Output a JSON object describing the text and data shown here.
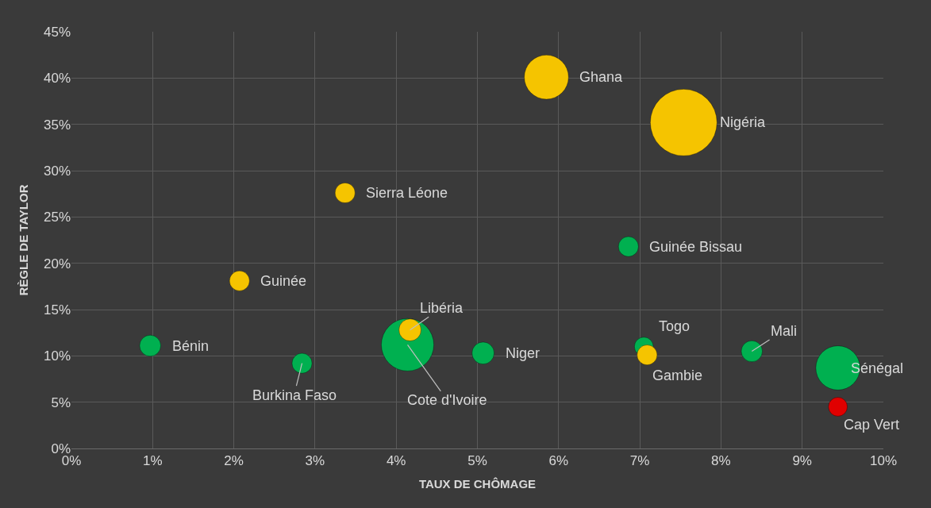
{
  "chart_data": {
    "type": "bubble",
    "xlabel": "TAUX DE CHÔMAGE",
    "ylabel": "RÈGLE DE TAYLOR",
    "x": [
      0.97,
      2.84,
      2.07,
      3.37,
      4.14,
      4.17,
      5.07,
      5.85,
      7.54,
      6.86,
      7.05,
      7.09,
      8.38,
      9.44,
      9.44
    ],
    "values": [
      11.1,
      9.2,
      18.1,
      27.6,
      11.2,
      12.8,
      10.3,
      40.1,
      35.2,
      21.8,
      11.0,
      10.1,
      10.5,
      8.7,
      4.5
    ],
    "sizes": [
      0.1,
      0.09,
      0.09,
      0.09,
      0.62,
      0.11,
      0.11,
      0.44,
      1,
      0.09,
      0.08,
      0.09,
      0.1,
      0.44,
      0.08
    ],
    "colors": [
      "#00b050",
      "#00b050",
      "#f5c400",
      "#f5c400",
      "#00b050",
      "#f5c400",
      "#00b050",
      "#f5c400",
      "#f5c400",
      "#00b050",
      "#00b050",
      "#f5c400",
      "#00b050",
      "#00b050",
      "#e00000"
    ],
    "annotations": [
      {
        "text": "Bénin",
        "x": 0.97,
        "y": 11.1
      },
      {
        "text": "Burkina Faso",
        "x": 2.84,
        "y": 9.2
      },
      {
        "text": "Guinée",
        "x": 2.07,
        "y": 18.1
      },
      {
        "text": "Sierra Léone",
        "x": 3.37,
        "y": 27.6
      },
      {
        "text": "Cote d'Ivoire",
        "x": 4.14,
        "y": 11.2
      },
      {
        "text": "Libéria",
        "x": 4.17,
        "y": 12.8
      },
      {
        "text": "Niger",
        "x": 5.07,
        "y": 10.3
      },
      {
        "text": "Ghana",
        "x": 5.85,
        "y": 40.1
      },
      {
        "text": "Nigéria",
        "x": 7.54,
        "y": 35.2
      },
      {
        "text": "Guinée Bissau",
        "x": 6.86,
        "y": 21.8
      },
      {
        "text": "Togo",
        "x": 7.05,
        "y": 11.0
      },
      {
        "text": "Gambie",
        "x": 7.09,
        "y": 10.1
      },
      {
        "text": "Mali",
        "x": 8.38,
        "y": 10.5
      },
      {
        "text": "Sénégal",
        "x": 9.44,
        "y": 8.7
      },
      {
        "text": "Cap Vert",
        "x": 9.44,
        "y": 4.5
      }
    ],
    "xlim": [
      0,
      10
    ],
    "ylim": [
      0,
      45
    ],
    "xticks": [
      {
        "value": 0,
        "label": "0%"
      },
      {
        "value": 1,
        "label": "1%"
      },
      {
        "value": 2,
        "label": "2%"
      },
      {
        "value": 3,
        "label": "3%"
      },
      {
        "value": 4,
        "label": "4%"
      },
      {
        "value": 5,
        "label": "5%"
      },
      {
        "value": 6,
        "label": "6%"
      },
      {
        "value": 7,
        "label": "7%"
      },
      {
        "value": 8,
        "label": "8%"
      },
      {
        "value": 9,
        "label": "9%"
      },
      {
        "value": 10,
        "label": "10%"
      }
    ],
    "yticks": [
      {
        "value": 0,
        "label": "0%"
      },
      {
        "value": 5,
        "label": "5%"
      },
      {
        "value": 10,
        "label": "10%"
      },
      {
        "value": 15,
        "label": "15%"
      },
      {
        "value": 20,
        "label": "20%"
      },
      {
        "value": 25,
        "label": "25%"
      },
      {
        "value": 30,
        "label": "30%"
      },
      {
        "value": 35,
        "label": "35%"
      },
      {
        "value": 40,
        "label": "40%"
      },
      {
        "value": 45,
        "label": "45%"
      }
    ],
    "grid": true
  }
}
